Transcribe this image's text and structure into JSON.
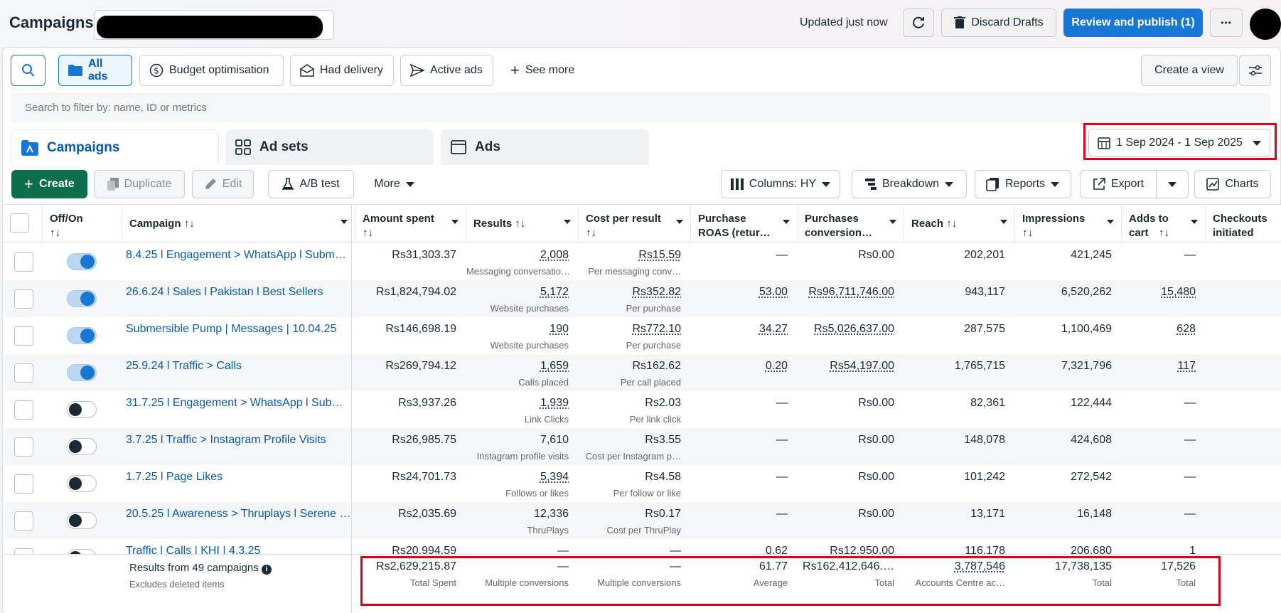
{
  "header": {
    "title": "Campaigns",
    "updated": "Updated just now",
    "discard": "Discard Drafts",
    "review": "Review and publish (1)",
    "more_glyph": "•••"
  },
  "chips": {
    "all": "All ads",
    "budget": "Budget optimisation",
    "delivery": "Had delivery",
    "active": "Active ads",
    "see_more": "See more",
    "create_view": "Create a view"
  },
  "search": {
    "placeholder": "Search to filter by: name, ID or metrics"
  },
  "tabs": {
    "campaigns": "Campaigns",
    "adsets": "Ad sets",
    "ads": "Ads"
  },
  "date_range": "1 Sep 2024 - 1 Sep 2025",
  "toolbar": {
    "create": "Create",
    "duplicate": "Duplicate",
    "edit": "Edit",
    "abtest": "A/B test",
    "more": "More",
    "columns": "Columns: HY",
    "breakdown": "Breakdown",
    "reports": "Reports",
    "export": "Export",
    "charts": "Charts"
  },
  "columns": {
    "offon": "Off/On",
    "campaign": "Campaign",
    "amount": "Amount spent",
    "results": "Results",
    "cpr": "Cost per result",
    "roas": "Purchase ROAS (retur…",
    "pconv": "Purchases conversion…",
    "reach": "Reach",
    "impr": "Impressions",
    "atc": "Adds to cart",
    "checkout": "Checkouts initiated"
  },
  "rows": [
    {
      "on": true,
      "name": "8.4.25 l Engagement > WhatsApp l Subm…",
      "amount": "Rs31,303.37",
      "results": "2,008",
      "results_sub": "Messaging conversatio…",
      "cpr": "Rs15.59",
      "cpr_sub": "Per messaging conv…",
      "roas": "—",
      "pconv": "Rs0.00",
      "reach": "202,201",
      "impr": "421,245",
      "atc": "—"
    },
    {
      "on": true,
      "name": "26.6.24 l Sales l Pakistan l Best Sellers",
      "amount": "Rs1,824,794.02",
      "results": "5,172",
      "results_sub": "Website purchases",
      "cpr": "Rs352.82",
      "cpr_sub": "Per purchase",
      "roas": "53.00",
      "pconv": "Rs96,711,746.00",
      "reach": "943,117",
      "impr": "6,520,262",
      "atc": "15,480"
    },
    {
      "on": true,
      "name": "Submersible Pump | Messages | 10.04.25",
      "amount": "Rs146,698.19",
      "results": "190",
      "results_sub": "Website purchases",
      "cpr": "Rs772.10",
      "cpr_sub": "Per purchase",
      "roas": "34.27",
      "pconv": "Rs5,026,637.00",
      "reach": "287,575",
      "impr": "1,100,469",
      "atc": "628"
    },
    {
      "on": true,
      "name": "25.9.24 l Traffic > Calls",
      "amount": "Rs269,794.12",
      "results": "1,659",
      "results_sub": "Calls placed",
      "cpr": "Rs162.62",
      "cpr_sub": "Per call placed",
      "roas": "0.20",
      "pconv": "Rs54,197.00",
      "reach": "1,765,715",
      "impr": "7,321,796",
      "atc": "117"
    },
    {
      "on": false,
      "name": "31.7.25 l Engagement > WhatsApp l Sub…",
      "amount": "Rs3,937.26",
      "results": "1,939",
      "results_sub": "Link Clicks",
      "cpr": "Rs2.03",
      "cpr_sub": "Per link click",
      "roas": "—",
      "pconv": "Rs0.00",
      "reach": "82,361",
      "impr": "122,444",
      "atc": "—"
    },
    {
      "on": false,
      "name": "3.7.25 l Traffic > Instagram Profile Visits",
      "amount": "Rs26,985.75",
      "results": "7,610",
      "results_sub": "Instagram profile visits",
      "cpr": "Rs3.55",
      "cpr_sub": "Cost per Instagram p…",
      "roas": "—",
      "pconv": "Rs0.00",
      "reach": "148,078",
      "impr": "424,608",
      "atc": "—"
    },
    {
      "on": false,
      "name": "1.7.25 l Page Likes",
      "amount": "Rs24,701.73",
      "results": "5,394",
      "results_sub": "Follows or likes",
      "cpr": "Rs4.58",
      "cpr_sub": "Per follow or like",
      "roas": "—",
      "pconv": "Rs0.00",
      "reach": "101,242",
      "impr": "272,542",
      "atc": "—"
    },
    {
      "on": false,
      "name": "20.5.25 l Awareness > Thruplays l Serene …",
      "amount": "Rs2,035.69",
      "results": "12,336",
      "results_sub": "ThruPlays",
      "cpr": "Rs0.17",
      "cpr_sub": "Cost per ThruPlay",
      "roas": "—",
      "pconv": "Rs0.00",
      "reach": "13,171",
      "impr": "16,148",
      "atc": "—"
    },
    {
      "on": false,
      "name": "Traffic | Calls | KHI | 4.3.25",
      "amount": "Rs20,994.59",
      "results": "—",
      "results_sub": "",
      "cpr": "—",
      "cpr_sub": "",
      "roas": "0.62",
      "pconv": "Rs12,950.00",
      "reach": "116,178",
      "impr": "206,680",
      "atc": "1"
    }
  ],
  "totals": {
    "label": "Results from 49 campaigns",
    "sub": "Excludes deleted items",
    "amount": "Rs2,629,215.87",
    "amount_sub": "Total Spent",
    "results": "—",
    "results_sub": "Multiple conversions",
    "cpr": "—",
    "cpr_sub": "Multiple conversions",
    "roas": "61.77",
    "roas_sub": "Average",
    "pconv": "Rs162,412,646.…",
    "pconv_sub": "Total",
    "reach": "3,787,546",
    "reach_sub": "Accounts Centre ac…",
    "impr": "17,738,135",
    "impr_sub": "Total",
    "atc": "17,526",
    "atc_sub": "Total"
  }
}
